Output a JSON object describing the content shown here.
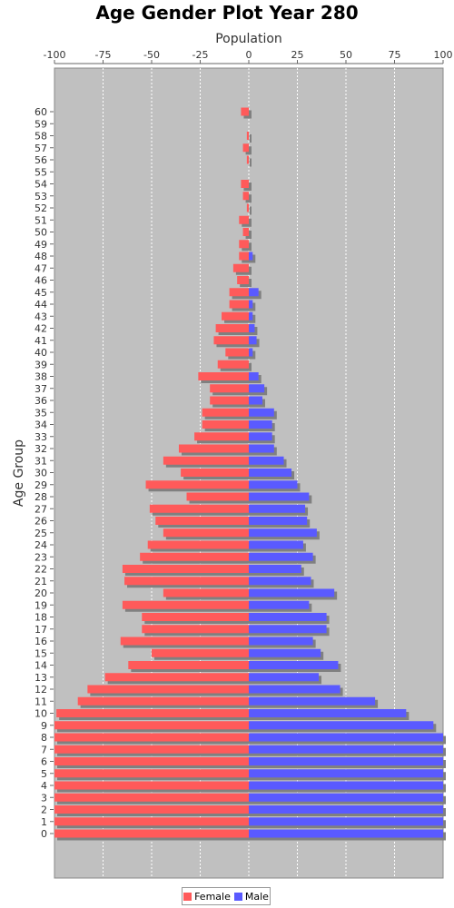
{
  "chart_data": {
    "type": "bar",
    "orientation": "horizontal",
    "title": "Age Gender Plot Year 280",
    "xlabel": "Population",
    "ylabel": "Age Group",
    "xlim": [
      -100,
      100
    ],
    "xticks": [
      "-100",
      "-75",
      "-50",
      "-25",
      "0",
      "25",
      "50",
      "75",
      "100"
    ],
    "categories": [
      "0",
      "1",
      "2",
      "3",
      "4",
      "5",
      "6",
      "7",
      "8",
      "9",
      "10",
      "11",
      "12",
      "13",
      "14",
      "15",
      "16",
      "17",
      "18",
      "19",
      "20",
      "21",
      "22",
      "23",
      "24",
      "25",
      "26",
      "27",
      "28",
      "29",
      "30",
      "31",
      "32",
      "33",
      "34",
      "35",
      "36",
      "37",
      "38",
      "39",
      "40",
      "41",
      "42",
      "43",
      "44",
      "45",
      "46",
      "47",
      "48",
      "49",
      "50",
      "51",
      "52",
      "53",
      "54",
      "55",
      "56",
      "57",
      "58",
      "59",
      "60"
    ],
    "series": [
      {
        "name": "Female",
        "color": "#ff5a5a",
        "values": [
          -100,
          -100,
          -100,
          -100,
          -100,
          -100,
          -100,
          -100,
          -100,
          -100,
          -99,
          -88,
          -83,
          -74,
          -62,
          -50,
          -66,
          -55,
          -55,
          -65,
          -44,
          -64,
          -65,
          -56,
          -52,
          -44,
          -48,
          -51,
          -32,
          -53,
          -35,
          -44,
          -36,
          -28,
          -24,
          -24,
          -20,
          -20,
          -26,
          -16,
          -12,
          -18,
          -17,
          -14,
          -10,
          -10,
          -6,
          -8,
          -5,
          -5,
          -3,
          -5,
          -1,
          -3,
          -4,
          0,
          -1,
          -3,
          -1,
          0,
          -4
        ]
      },
      {
        "name": "Male",
        "color": "#5a5aff",
        "values": [
          100,
          100,
          100,
          100,
          100,
          100,
          100,
          100,
          100,
          95,
          81,
          65,
          47,
          36,
          46,
          37,
          33,
          40,
          40,
          31,
          44,
          32,
          27,
          33,
          28,
          35,
          30,
          29,
          31,
          25,
          22,
          18,
          13,
          12,
          12,
          13,
          7,
          8,
          5,
          0,
          2,
          4,
          3,
          2,
          2,
          5,
          0,
          0,
          2,
          0,
          0,
          0,
          0,
          0,
          0,
          0,
          0,
          0,
          0,
          0,
          0
        ]
      }
    ],
    "grid": true,
    "legend_position": "bottom"
  }
}
